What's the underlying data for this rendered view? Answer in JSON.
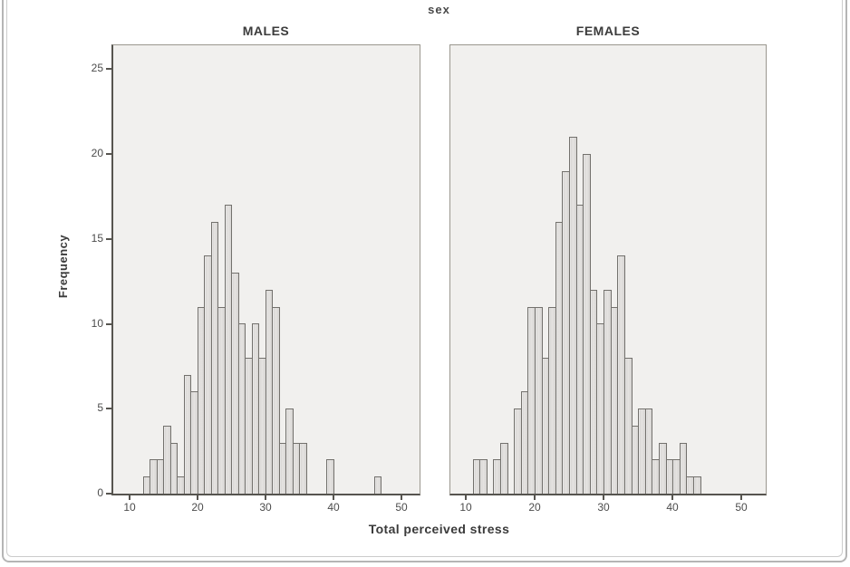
{
  "chart_data": {
    "type": "bar",
    "chart_kind": "histogram",
    "title": "sex",
    "xlabel": "Total perceived stress",
    "ylabel": "Frequency",
    "x_ticks": [
      10,
      20,
      30,
      40,
      50
    ],
    "y_ticks": [
      0,
      5,
      10,
      15,
      20,
      25
    ],
    "ylim": [
      0,
      26.4
    ],
    "bin_width": 1,
    "grid": false,
    "panels": [
      {
        "label": "MALES",
        "xlim": [
          7.6,
          52.67
        ],
        "bins": [
          [
            12,
            1
          ],
          [
            13,
            2
          ],
          [
            14,
            2
          ],
          [
            15,
            4
          ],
          [
            16,
            3
          ],
          [
            17,
            1
          ],
          [
            18,
            7
          ],
          [
            19,
            6
          ],
          [
            20,
            11
          ],
          [
            21,
            14
          ],
          [
            22,
            16
          ],
          [
            23,
            11
          ],
          [
            24,
            17
          ],
          [
            25,
            13
          ],
          [
            26,
            10
          ],
          [
            27,
            8
          ],
          [
            28,
            10
          ],
          [
            29,
            8
          ],
          [
            30,
            12
          ],
          [
            31,
            11
          ],
          [
            32,
            3
          ],
          [
            33,
            5
          ],
          [
            34,
            3
          ],
          [
            35,
            3
          ],
          [
            39,
            2
          ],
          [
            46,
            1
          ]
        ]
      },
      {
        "label": "FEMALES",
        "xlim": [
          7.77,
          53.52
        ],
        "bins": [
          [
            11,
            2
          ],
          [
            12,
            2
          ],
          [
            14,
            2
          ],
          [
            15,
            3
          ],
          [
            17,
            5
          ],
          [
            18,
            6
          ],
          [
            19,
            11
          ],
          [
            20,
            11
          ],
          [
            21,
            8
          ],
          [
            22,
            11
          ],
          [
            23,
            16
          ],
          [
            24,
            19
          ],
          [
            25,
            21
          ],
          [
            26,
            17
          ],
          [
            27,
            20
          ],
          [
            28,
            12
          ],
          [
            29,
            10
          ],
          [
            30,
            12
          ],
          [
            31,
            11
          ],
          [
            32,
            14
          ],
          [
            33,
            8
          ],
          [
            34,
            4
          ],
          [
            35,
            5
          ],
          [
            36,
            5
          ],
          [
            37,
            2
          ],
          [
            38,
            3
          ],
          [
            39,
            2
          ],
          [
            40,
            2
          ],
          [
            41,
            3
          ],
          [
            42,
            1
          ],
          [
            43,
            1
          ]
        ]
      }
    ]
  }
}
